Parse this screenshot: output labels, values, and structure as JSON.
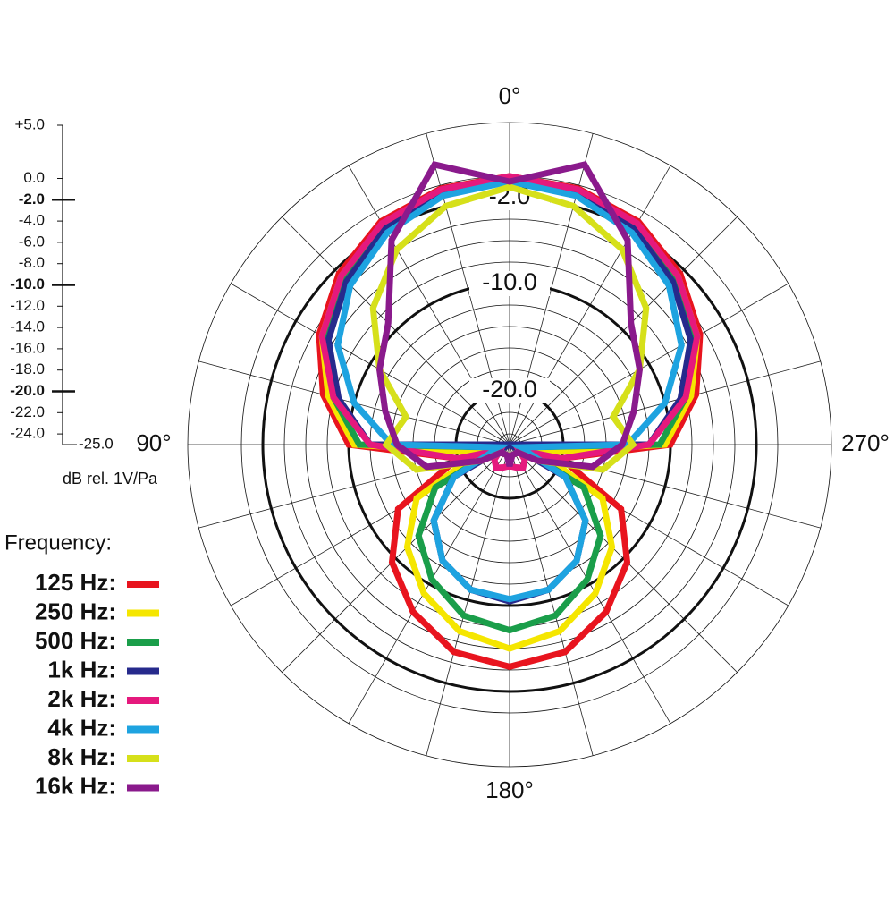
{
  "chart_data": {
    "type": "polar",
    "r_axis_label": "dB rel. 1V/Pa",
    "rlim": [
      -25,
      5
    ],
    "rticks": [
      {
        "value": 5,
        "label": "+5.0"
      },
      {
        "value": 0,
        "label": "0.0"
      },
      {
        "value": -2,
        "label": "-2.0"
      },
      {
        "value": -4,
        "label": "-4.0"
      },
      {
        "value": -6,
        "label": "-6.0"
      },
      {
        "value": -8,
        "label": "-8.0"
      },
      {
        "value": -10,
        "label": "-10.0"
      },
      {
        "value": -12,
        "label": "-12.0"
      },
      {
        "value": -14,
        "label": "-14.0"
      },
      {
        "value": -16,
        "label": "-16.0"
      },
      {
        "value": -18,
        "label": "-18.0"
      },
      {
        "value": -20,
        "label": "-20.0"
      },
      {
        "value": -22,
        "label": "-22.0"
      },
      {
        "value": -24,
        "label": "-24.0"
      },
      {
        "value": -25,
        "label": "-25.0"
      }
    ],
    "ring_labels": [
      {
        "value": -2,
        "label": "-2.0"
      },
      {
        "value": -10,
        "label": "-10.0"
      },
      {
        "value": -20,
        "label": "-20.0"
      }
    ],
    "angle_labels": [
      {
        "value": 0,
        "label": "0°"
      },
      {
        "value": 90,
        "label": "90°"
      },
      {
        "value": 180,
        "label": "180°"
      },
      {
        "value": 270,
        "label": "270°"
      }
    ],
    "x": [
      0,
      15,
      30,
      45,
      60,
      75,
      90,
      105,
      120,
      135,
      150,
      165,
      180,
      195,
      210,
      225,
      240,
      255,
      270,
      285,
      300,
      315,
      330,
      345
    ],
    "legend_title": "Frequency:",
    "series": [
      {
        "name": "125 Hz:",
        "color": "#e8141e",
        "values": [
          0,
          -0.3,
          -1,
          -2.5,
          -4.5,
          -7,
          -10,
          -20,
          -13,
          -9.5,
          -7,
          -5,
          -4.3,
          -5,
          -7,
          -9.5,
          -13,
          -20,
          -10,
          -7,
          -4.5,
          -2.5,
          -1,
          -0.3
        ]
      },
      {
        "name": "250 Hz:",
        "color": "#f5e600",
        "values": [
          -0.3,
          -0.6,
          -1.3,
          -2.8,
          -4.8,
          -7.5,
          -10.5,
          -22,
          -15,
          -11.5,
          -9,
          -7,
          -6,
          -7,
          -9,
          -11.5,
          -15,
          -22,
          -10.5,
          -7.5,
          -4.8,
          -2.8,
          -1.3,
          -0.6
        ]
      },
      {
        "name": "500 Hz:",
        "color": "#1a9e4a",
        "values": [
          -0.5,
          -0.8,
          -1.6,
          -3.2,
          -5.2,
          -8,
          -11,
          -24,
          -17,
          -13,
          -10.5,
          -8.5,
          -7.7,
          -8.5,
          -10.5,
          -13,
          -17,
          -24,
          -11,
          -8,
          -5.2,
          -3.2,
          -1.6,
          -0.8
        ]
      },
      {
        "name": "1k Hz:",
        "color": "#262a8c",
        "values": [
          -0.5,
          -0.8,
          -1.8,
          -3.5,
          -5.5,
          -8.5,
          -12,
          -25,
          -19,
          -15,
          -12.5,
          -11,
          -10.4,
          -11,
          -12.5,
          -15,
          -19,
          -25,
          -12,
          -8.5,
          -5.5,
          -3.5,
          -1.8,
          -0.8
        ]
      },
      {
        "name": "2k Hz:",
        "color": "#e5197d",
        "values": [
          0,
          -0.4,
          -1.2,
          -2.8,
          -4.8,
          -8,
          -12,
          -20,
          -24,
          -23,
          -22.5,
          -22.8,
          -23,
          -22.8,
          -22.5,
          -23,
          -24,
          -20,
          -12,
          -8,
          -4.8,
          -2.8,
          -1.2,
          -0.4
        ]
      },
      {
        "name": "4k Hz:",
        "color": "#1ea3e0",
        "values": [
          -0.5,
          -1,
          -2.2,
          -4,
          -6.5,
          -10,
          -14,
          -24,
          -19,
          -15,
          -12.5,
          -11,
          -10.6,
          -11,
          -12.5,
          -15,
          -19,
          -24,
          -14,
          -10,
          -6.5,
          -4,
          -2.2,
          -1
        ]
      },
      {
        "name": "8k Hz:",
        "color": "#d6e01a",
        "values": [
          -1,
          -2,
          -4,
          -7,
          -11,
          -15,
          -13.5,
          -16,
          -22,
          -24,
          -24,
          -24,
          -24,
          -24,
          -24,
          -24,
          -22,
          -16,
          -13.5,
          -15,
          -11,
          -7,
          -4,
          -2
        ]
      },
      {
        "name": "16k Hz:",
        "color": "#8a1a8c",
        "values": [
          -0.5,
          2,
          -3,
          -9,
          -11,
          -13,
          -14.5,
          -17,
          -22,
          -24,
          -24,
          -24,
          -23,
          -24,
          -24,
          -24,
          -22,
          -17,
          -14.5,
          -13,
          -11,
          -9,
          -3,
          2
        ]
      }
    ]
  }
}
